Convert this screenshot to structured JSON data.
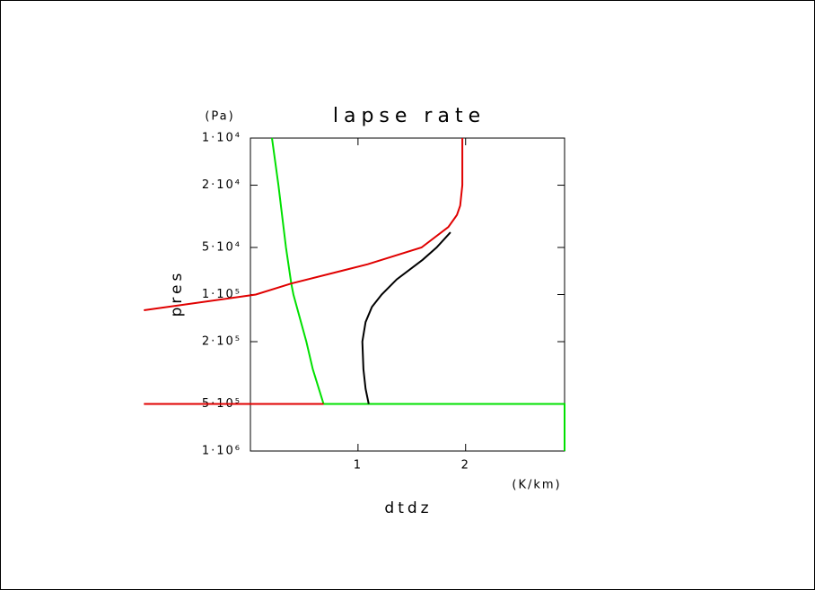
{
  "chart_data": {
    "type": "line",
    "title": "lapse rate",
    "x_label": "dtdz",
    "x_unit": "(K/km)",
    "y_label": "pres",
    "y_unit": "(Pa)",
    "xlim": [
      0,
      2.92
    ],
    "xticks": [
      1,
      2
    ],
    "ylim": [
      10000,
      1000000
    ],
    "y_log": true,
    "y_inverted": true,
    "yticks": [
      {
        "value": 10000,
        "label": "1·10⁴"
      },
      {
        "value": 20000,
        "label": "2·10⁴"
      },
      {
        "value": 50000,
        "label": "5·10⁴"
      },
      {
        "value": 100000,
        "label": "1·10⁵"
      },
      {
        "value": 200000,
        "label": "2·10⁵"
      },
      {
        "value": 500000,
        "label": "5·10⁵"
      },
      {
        "value": 1000000,
        "label": "1·10⁶"
      }
    ],
    "series": [
      {
        "color": "#00e000",
        "x": [
          0.2,
          0.26,
          0.33,
          0.38,
          0.4,
          0.52,
          0.58,
          0.68,
          2.92,
          2.92
        ],
        "values": [
          10000,
          20000,
          50000,
          85000,
          100000,
          200000,
          300000,
          500000,
          500000,
          1000000
        ]
      },
      {
        "color": "#000000",
        "x": [
          1.1,
          1.07,
          1.05,
          1.04,
          1.07,
          1.13,
          1.22,
          1.36,
          1.6,
          1.73,
          1.86
        ],
        "values": [
          500000,
          400000,
          300000,
          200000,
          150000,
          120000,
          100000,
          80000,
          60000,
          50000,
          40000
        ]
      },
      {
        "color": "#e00000",
        "x": [
          1.97,
          1.97,
          1.95,
          1.92,
          1.84,
          1.59,
          1.09,
          0.38,
          0.05,
          -0.99,
          null,
          -0.99,
          0.68
        ],
        "values": [
          10000,
          20000,
          27000,
          31000,
          37000,
          50000,
          64000,
          85000,
          100000,
          126000,
          null,
          500000,
          500000
        ]
      }
    ]
  }
}
